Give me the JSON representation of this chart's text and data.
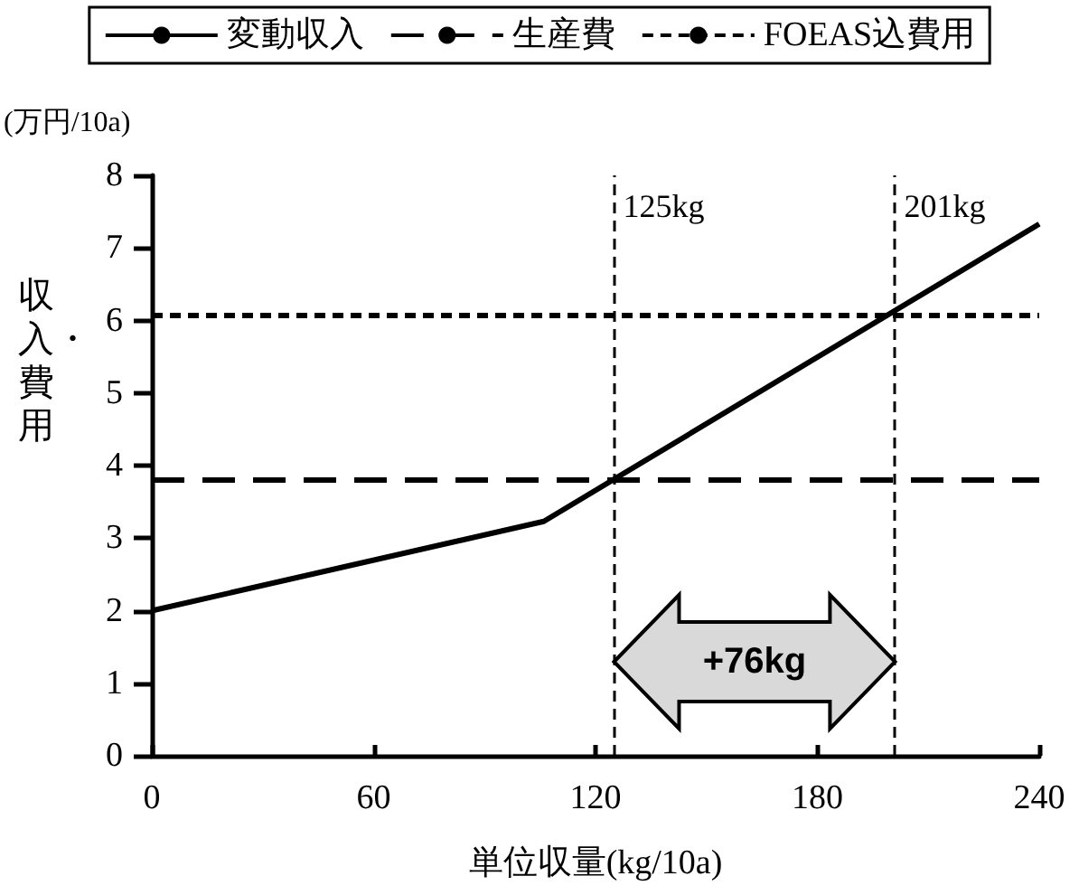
{
  "chart_data": {
    "type": "line",
    "xlabel": "単位収量(kg/10a)",
    "ylabel": "収入・費用",
    "xlim": [
      0,
      240
    ],
    "xticks": [
      0,
      60,
      120,
      180,
      240
    ],
    "ylim": [
      0,
      8
    ],
    "yticks": [
      0,
      1,
      2,
      3,
      4,
      5,
      6,
      7,
      8
    ],
    "series": [
      {
        "name": "変動収入",
        "color": "#000000",
        "x": [
          0,
          106,
          240
        ],
        "values": [
          2.0,
          3.23,
          7.33
        ],
        "line_style": "solid"
      },
      {
        "name": "生産費",
        "color": "#000000",
        "x": [
          0,
          240
        ],
        "values": [
          3.8,
          3.8
        ],
        "line_style": "dashed"
      },
      {
        "name": "FOEAS込費用",
        "color": "#000000",
        "x": [
          0,
          240
        ],
        "values": [
          6.07,
          6.07
        ],
        "line_style": "dotted"
      }
    ],
    "ref_lines": [
      {
        "axis": "x",
        "value": 125,
        "label": "125kg",
        "line_style": "dotted",
        "color": "#000000"
      },
      {
        "axis": "x",
        "value": 201,
        "label": "201kg",
        "line_style": "dotted",
        "color": "#000000"
      }
    ],
    "annotations": [
      "(万円/10a)",
      "+76kg"
    ],
    "legend": "top",
    "grid": false,
    "marker": "none"
  }
}
